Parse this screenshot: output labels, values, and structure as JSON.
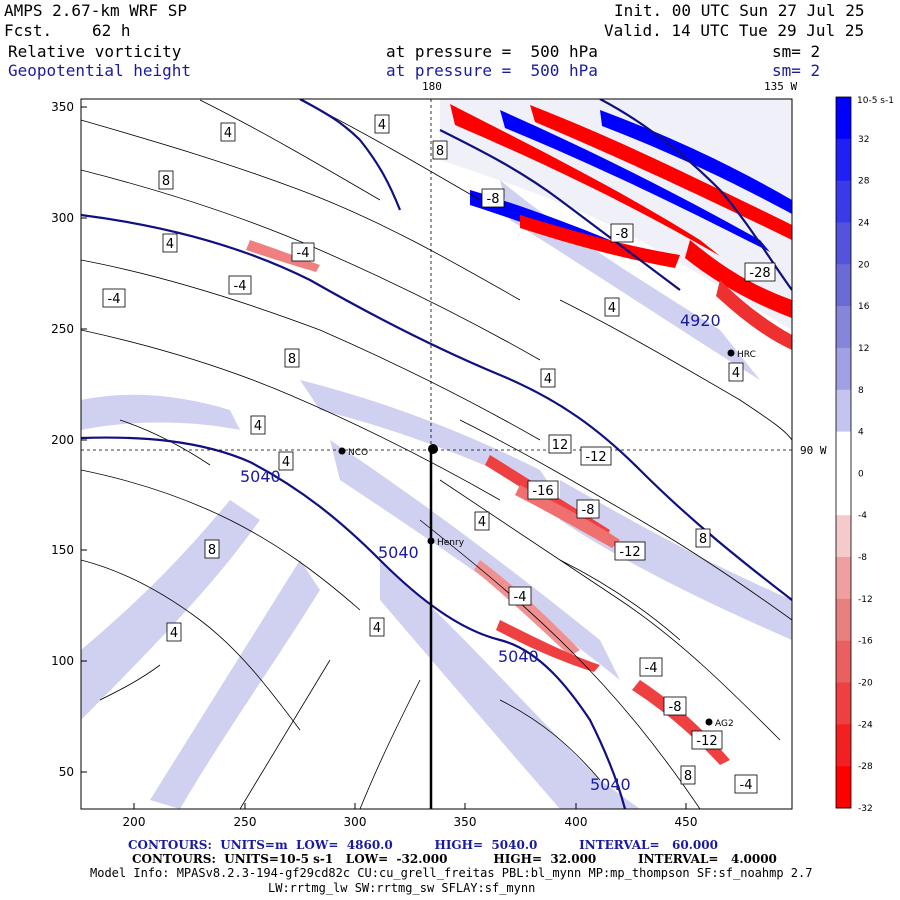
{
  "header": {
    "model": "AMPS 2.67-km WRF SP",
    "fcst_label": "Fcst.",
    "fcst_value": "62 h",
    "init": "Init. 00 UTC Sun 27 Jul 25",
    "valid": "Valid. 14 UTC Tue 29 Jul 25",
    "field1": "Relative vorticity",
    "field2": "Geopotential height",
    "pressure1": "at pressure =  500 hPa",
    "pressure2": "at pressure =  500 hPa",
    "sm1": "sm= 2",
    "sm2": "sm= 2",
    "lon_top_left": "180",
    "lon_top_right": "135 W",
    "lon_right": "90 W"
  },
  "map": {
    "x_ticks": [
      "200",
      "250",
      "300",
      "350",
      "400",
      "450"
    ],
    "y_ticks": [
      "350",
      "300",
      "250",
      "200",
      "150",
      "100",
      "50"
    ],
    "stations": [
      {
        "name": "NCO"
      },
      {
        "name": "Henry"
      },
      {
        "name": "HRC"
      },
      {
        "name": "AG2"
      }
    ],
    "height_labels": [
      "5040",
      "5040",
      "5040",
      "5040",
      "4920"
    ],
    "vort_labels": [
      "4",
      "8",
      "-4",
      "4",
      "8",
      "-4",
      "-8",
      "4",
      "12",
      "-16",
      "-8",
      "4",
      "-12",
      "4",
      "-4",
      "8",
      "4",
      "-8",
      "-12",
      "4",
      "8",
      "-4",
      "4",
      "4",
      "4",
      "8",
      "4",
      "-28",
      "-8",
      "-4",
      "-12",
      "-4",
      "8"
    ]
  },
  "colorbar": {
    "unit": "10-5 s-1",
    "labels": [
      "32",
      "28",
      "24",
      "20",
      "16",
      "12",
      "8",
      "4",
      "0",
      "-4",
      "-8",
      "-12",
      "-16",
      "-20",
      "-24",
      "-28",
      "-32"
    ],
    "colors": [
      "#0000ff",
      "#2020f5",
      "#3a3ae8",
      "#5353dc",
      "#6b6bd6",
      "#8585d9",
      "#a0a0e2",
      "#c4c4ee",
      "#ffffff",
      "#ffffff",
      "#f4caca",
      "#ef9f9f",
      "#e98080",
      "#ea6060",
      "#ee4040",
      "#f22020",
      "#ff0000"
    ]
  },
  "footer": {
    "line1": "CONTOURS:  UNITS=m  LOW=  4860.0          HIGH=  5040.0          INTERVAL=   60.000",
    "line2": "CONTOURS:  UNITS=10-5 s-1   LOW=  -32.000           HIGH=  32.000          INTERVAL=   4.0000",
    "line3": "Model Info: MPASv8.2.3-194-gf29cd82c CU:cu_grell_freitas PBL:bl_mynn MP:mp_thompson SF:sf_noahmp 2.7",
    "line4": "LW:rrtmg_lw SW:rrtmg_sw SFLAY:sf_mynn"
  }
}
